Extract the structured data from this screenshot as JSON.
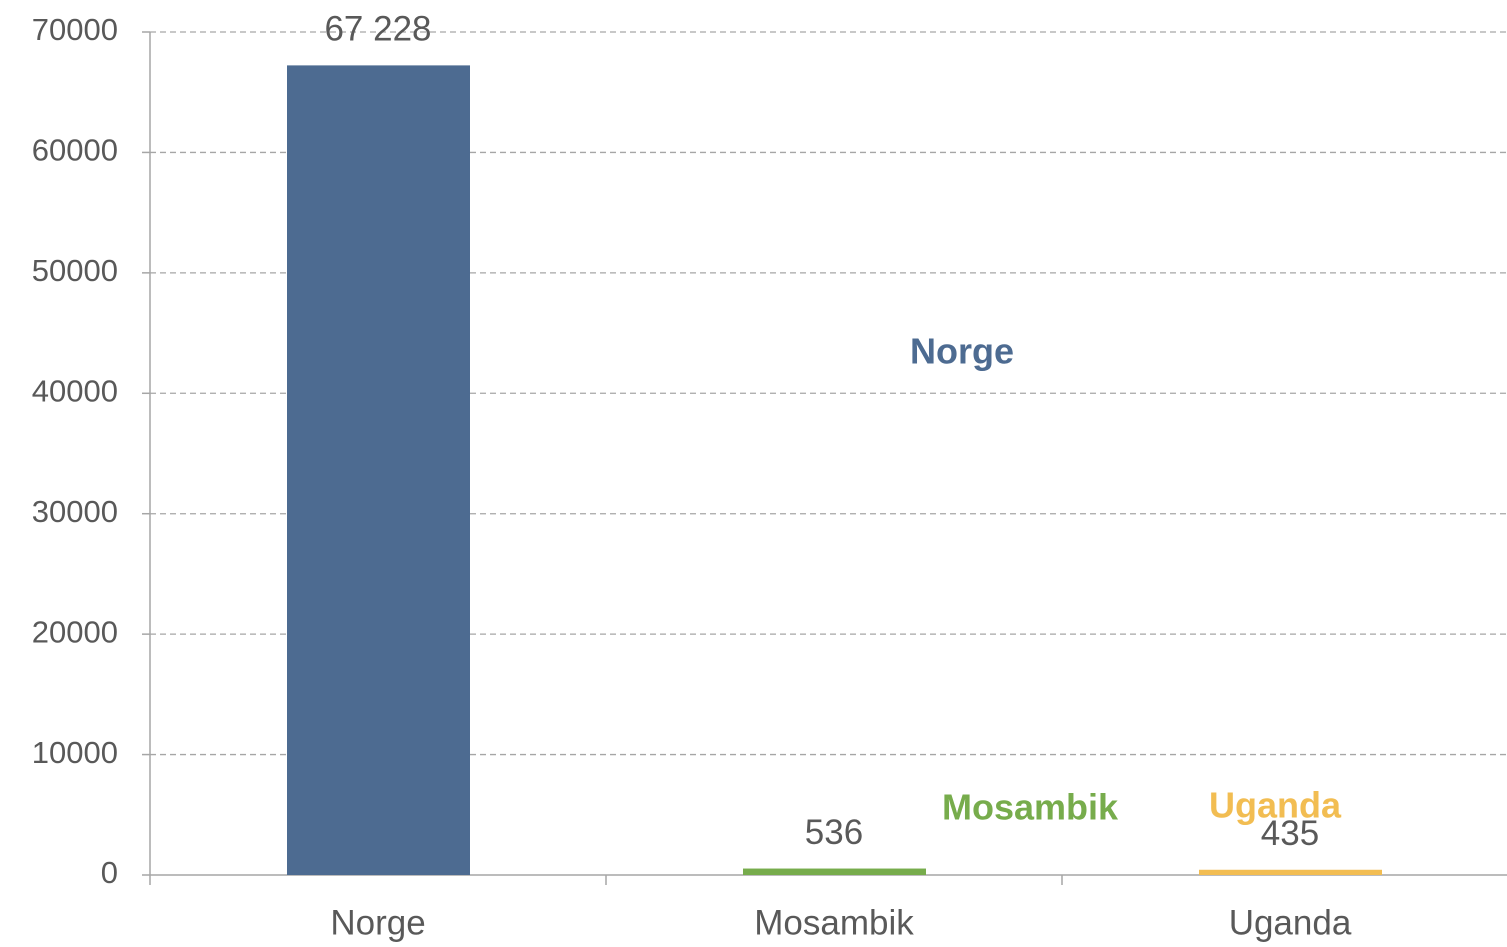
{
  "chart_data": {
    "type": "bar",
    "categories": [
      "Norge",
      "Mosambik",
      "Uganda"
    ],
    "values": [
      67228,
      536,
      435
    ],
    "value_labels": [
      "67 228",
      "536",
      "435"
    ],
    "colors": [
      "#4d6b91",
      "#77ac4c",
      "#f2bd52"
    ],
    "ylim": [
      0,
      70000
    ],
    "yticks": [
      0,
      10000,
      20000,
      30000,
      40000,
      50000,
      60000,
      70000
    ],
    "grid": true,
    "annotations": [
      {
        "text": "Norge",
        "color": "#4d6b91"
      },
      {
        "text": "Mosambik",
        "color": "#77ac4c"
      },
      {
        "text": "Uganda",
        "color": "#f2bd52"
      }
    ]
  }
}
